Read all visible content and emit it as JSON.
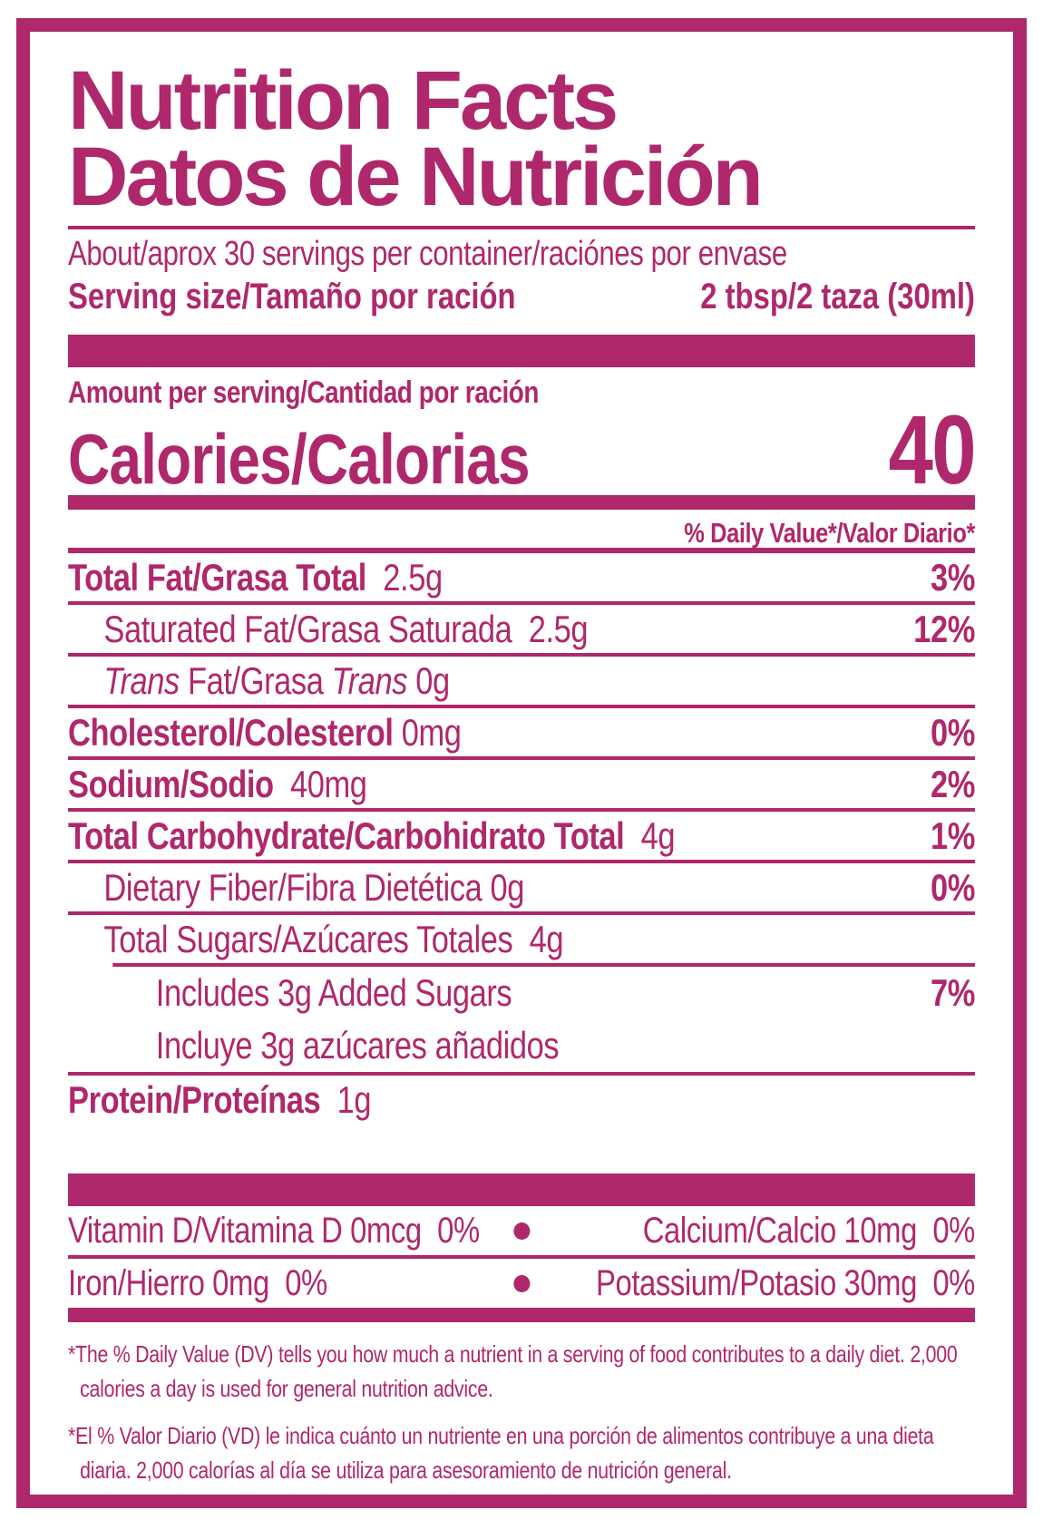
{
  "colors": {
    "brand": "#AF286C",
    "background": "#FFFFFF"
  },
  "header": {
    "title_en": "Nutrition Facts",
    "title_es": "Datos de Nutrición"
  },
  "serving": {
    "servings_line": "About/aprox 30 servings per container/raciónes por envase",
    "serving_size_label": "Serving size/Tamaño por ración",
    "serving_size_value": "2 tbsp/2 taza (30ml)"
  },
  "calories": {
    "amount_heading": "Amount per serving/Cantidad por ración",
    "label": "Calories/Calorias",
    "value": "40"
  },
  "daily_value_header": "% Daily Value*/Valor Diario*",
  "nutrients": [
    {
      "level": 0,
      "dv": "3%",
      "rule": "heavy",
      "rule_indented": false,
      "lines": [
        [
          {
            "t": "Total Fat/Grasa Total",
            "b": true
          },
          {
            "t": "  2.5g"
          }
        ]
      ]
    },
    {
      "level": 1,
      "dv": "12%",
      "rule_indented": false,
      "lines": [
        [
          {
            "t": "Saturated Fat/Grasa Saturada  2.5g"
          }
        ]
      ]
    },
    {
      "level": 1,
      "dv": "",
      "rule_indented": false,
      "lines": [
        [
          {
            "t": "Trans",
            "i": true
          },
          {
            "t": " Fat/Grasa "
          },
          {
            "t": "Trans",
            "i": true
          },
          {
            "t": " 0g"
          }
        ]
      ]
    },
    {
      "level": 0,
      "dv": "0%",
      "rule_indented": false,
      "lines": [
        [
          {
            "t": "Cholesterol/Colesterol",
            "b": true
          },
          {
            "t": " 0mg"
          }
        ]
      ]
    },
    {
      "level": 0,
      "dv": "2%",
      "rule_indented": false,
      "lines": [
        [
          {
            "t": "Sodium/Sodio",
            "b": true
          },
          {
            "t": "  40mg"
          }
        ]
      ]
    },
    {
      "level": 0,
      "dv": "1%",
      "rule_indented": false,
      "lines": [
        [
          {
            "t": "Total Carbohydrate/Carbohidrato Total",
            "b": true
          },
          {
            "t": "  4g"
          }
        ]
      ]
    },
    {
      "level": 1,
      "dv": "0%",
      "rule_indented": false,
      "lines": [
        [
          {
            "t": "Dietary Fiber/Fibra Dietética 0g"
          }
        ]
      ]
    },
    {
      "level": 1,
      "dv": "",
      "rule_indented": false,
      "lines": [
        [
          {
            "t": "Total Sugars/Azúcares Totales  4g"
          }
        ]
      ]
    },
    {
      "level": 2,
      "dv": "7%",
      "rule_indented": true,
      "tall": true,
      "lines": [
        [
          {
            "t": "Includes 3g Added Sugars"
          }
        ],
        [
          {
            "t": "Incluye 3g azúcares añadidos"
          }
        ]
      ]
    },
    {
      "level": 0,
      "dv": "",
      "rule_indented": false,
      "lines": [
        [
          {
            "t": "Protein/Proteínas",
            "b": true
          },
          {
            "t": "  1g"
          }
        ]
      ]
    }
  ],
  "micronutrients": {
    "bullet": "dot",
    "rows": [
      {
        "left": "Vitamin D/Vitamina D 0mcg  0%",
        "right": "Calcium/Calcio 10mg  0%"
      },
      {
        "left": "Iron/Hierro 0mg  0%",
        "right": "Potassium/Potasio 30mg  0%"
      }
    ]
  },
  "footnotes": [
    "*The % Daily Value (DV) tells you how much a nutrient in a serving of food contributes to a daily diet. 2,000 calories a day is used for general nutrition advice.",
    "*El % Valor Diario (VD) le indica cuánto un nutriente en una porción de alimentos contribuye a una dieta diaria. 2,000 calorías al día se utiliza para asesoramiento de nutrición general."
  ]
}
